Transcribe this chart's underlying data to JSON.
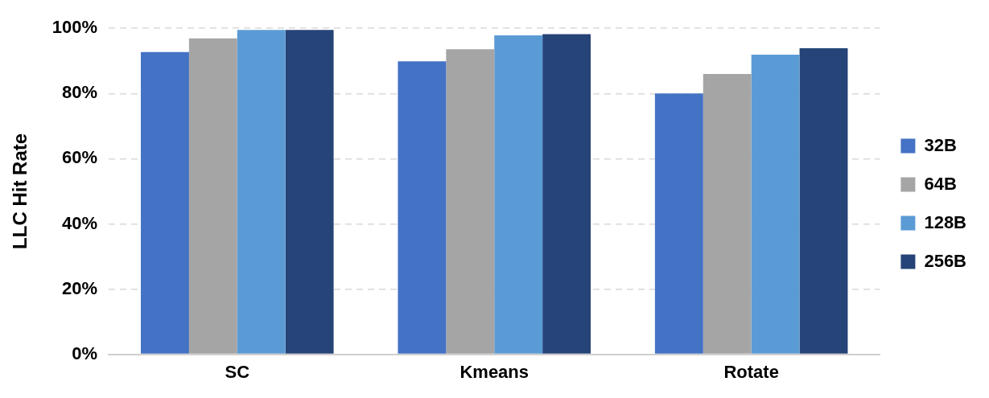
{
  "chart_data": {
    "type": "bar",
    "ylabel": "LLC Hit Rate",
    "categories": [
      "SC",
      "Kmeans",
      "Rotate"
    ],
    "series": [
      {
        "name": "32B",
        "color": "#4472c4",
        "values": [
          92.7,
          89.9,
          80
        ]
      },
      {
        "name": "64B",
        "color": "#a5a5a5",
        "values": [
          96.9,
          93.6,
          86
        ]
      },
      {
        "name": "128B",
        "color": "#5b9bd5",
        "values": [
          99.5,
          97.8,
          91.9
        ]
      },
      {
        "name": "256B",
        "color": "#264478",
        "values": [
          99.5,
          98.2,
          93.9
        ]
      }
    ],
    "ylim": [
      0,
      100
    ],
    "yticks": [
      {
        "value": 0,
        "label": "0%"
      },
      {
        "value": 20,
        "label": "20%"
      },
      {
        "value": 40,
        "label": "40%"
      },
      {
        "value": 60,
        "label": "60%"
      },
      {
        "value": 80,
        "label": "80%"
      },
      {
        "value": 100,
        "label": "100%"
      }
    ],
    "grid": "y",
    "legend": "right"
  }
}
